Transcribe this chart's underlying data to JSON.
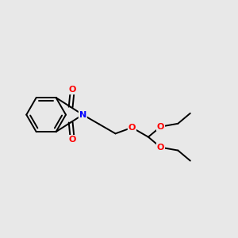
{
  "background_color": "#e8e8e8",
  "bond_color": "#000000",
  "N_color": "#0000ff",
  "O_color": "#ff0000",
  "bond_width": 1.4,
  "font_size_atom": 8,
  "fig_width": 3.0,
  "fig_height": 3.0,
  "dpi": 100,
  "xlim": [
    0,
    11
  ],
  "ylim": [
    0,
    10
  ]
}
